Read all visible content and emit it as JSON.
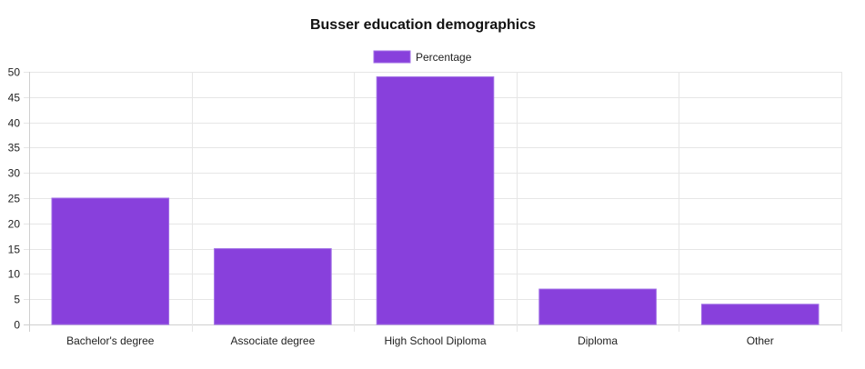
{
  "chart_data": {
    "type": "bar",
    "title": "Busser education demographics",
    "categories": [
      "Bachelor's degree",
      "Associate degree",
      "High School Diploma",
      "Diploma",
      "Other"
    ],
    "series": [
      {
        "name": "Percentage",
        "values": [
          25,
          15,
          49,
          7,
          4
        ]
      }
    ],
    "ylim": [
      0,
      50
    ],
    "yticks": [
      0,
      5,
      10,
      15,
      20,
      25,
      30,
      35,
      40,
      45,
      50
    ],
    "xlabel": "",
    "ylabel": "",
    "grid": true,
    "legend": "top-center",
    "colors": {
      "bar_fill": "#8840dc",
      "bar_border": "#a06ee6"
    }
  }
}
